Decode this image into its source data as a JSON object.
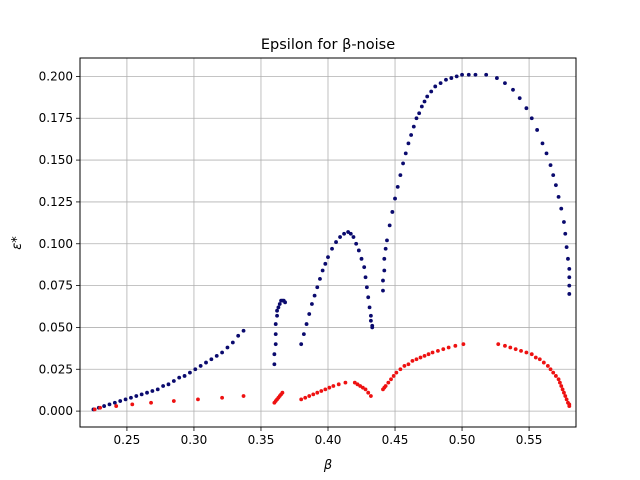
{
  "chart_data": {
    "type": "scatter",
    "title": "Epsilon for β-noise",
    "xlabel": "β",
    "ylabel": "ε*",
    "xlim": [
      0.215,
      0.585
    ],
    "ylim": [
      -0.0095,
      0.211
    ],
    "xticks": [
      0.25,
      0.3,
      0.35,
      0.4,
      0.45,
      0.5,
      0.55
    ],
    "xtick_labels": [
      "0.25",
      "0.30",
      "0.35",
      "0.40",
      "0.45",
      "0.50",
      "0.55"
    ],
    "yticks": [
      0.0,
      0.025,
      0.05,
      0.075,
      0.1,
      0.125,
      0.15,
      0.175,
      0.2
    ],
    "ytick_labels": [
      "0.000",
      "0.025",
      "0.050",
      "0.075",
      "0.100",
      "0.125",
      "0.150",
      "0.175",
      "0.200"
    ],
    "grid": true,
    "colors": {
      "series_1": "#0a0a6e",
      "series_2": "#ee1111",
      "grid": "#b0b0b0"
    },
    "series": [
      {
        "x": [
          0.225,
          0.229,
          0.233,
          0.237,
          0.241,
          0.245,
          0.249,
          0.253,
          0.257,
          0.261,
          0.265,
          0.269,
          0.273,
          0.277,
          0.281,
          0.285,
          0.289,
          0.293,
          0.297,
          0.301,
          0.305,
          0.309,
          0.313,
          0.317,
          0.321,
          0.325,
          0.329,
          0.333,
          0.337,
          0.36,
          0.36,
          0.361,
          0.361,
          0.361,
          0.362,
          0.362,
          0.363,
          0.364,
          0.365,
          0.366,
          0.367,
          0.368,
          0.38,
          0.382,
          0.384,
          0.386,
          0.388,
          0.39,
          0.392,
          0.394,
          0.396,
          0.398,
          0.4,
          0.403,
          0.406,
          0.409,
          0.412,
          0.415,
          0.417,
          0.419,
          0.421,
          0.423,
          0.425,
          0.427,
          0.428,
          0.429,
          0.43,
          0.431,
          0.432,
          0.432,
          0.433,
          0.433,
          0.441,
          0.441,
          0.442,
          0.442,
          0.443,
          0.444,
          0.446,
          0.448,
          0.45,
          0.452,
          0.454,
          0.456,
          0.458,
          0.46,
          0.462,
          0.464,
          0.466,
          0.468,
          0.47,
          0.472,
          0.474,
          0.477,
          0.48,
          0.484,
          0.488,
          0.492,
          0.496,
          0.5,
          0.505,
          0.51,
          0.518,
          0.526,
          0.532,
          0.538,
          0.543,
          0.548,
          0.552,
          0.556,
          0.56,
          0.563,
          0.566,
          0.568,
          0.57,
          0.572,
          0.574,
          0.576,
          0.577,
          0.578,
          0.579,
          0.58,
          0.58,
          0.58,
          0.58
        ],
        "y": [
          0.001,
          0.002,
          0.003,
          0.004,
          0.005,
          0.006,
          0.007,
          0.008,
          0.009,
          0.01,
          0.011,
          0.012,
          0.013,
          0.015,
          0.016,
          0.018,
          0.02,
          0.021,
          0.023,
          0.025,
          0.027,
          0.029,
          0.031,
          0.033,
          0.035,
          0.038,
          0.041,
          0.045,
          0.048,
          0.028,
          0.034,
          0.04,
          0.046,
          0.052,
          0.057,
          0.06,
          0.062,
          0.064,
          0.066,
          0.066,
          0.066,
          0.065,
          0.04,
          0.046,
          0.052,
          0.058,
          0.064,
          0.069,
          0.074,
          0.079,
          0.084,
          0.088,
          0.092,
          0.097,
          0.101,
          0.104,
          0.106,
          0.107,
          0.106,
          0.104,
          0.1,
          0.096,
          0.091,
          0.086,
          0.08,
          0.074,
          0.068,
          0.062,
          0.057,
          0.054,
          0.051,
          0.05,
          0.072,
          0.078,
          0.084,
          0.091,
          0.097,
          0.102,
          0.111,
          0.119,
          0.127,
          0.134,
          0.141,
          0.148,
          0.154,
          0.16,
          0.165,
          0.17,
          0.175,
          0.178,
          0.182,
          0.185,
          0.188,
          0.191,
          0.194,
          0.196,
          0.198,
          0.199,
          0.2,
          0.201,
          0.201,
          0.201,
          0.201,
          0.199,
          0.196,
          0.192,
          0.187,
          0.181,
          0.175,
          0.168,
          0.16,
          0.154,
          0.147,
          0.141,
          0.135,
          0.128,
          0.121,
          0.113,
          0.106,
          0.098,
          0.091,
          0.085,
          0.08,
          0.075,
          0.07
        ]
      },
      {
        "x": [
          0.226,
          0.23,
          0.242,
          0.254,
          0.268,
          0.285,
          0.303,
          0.321,
          0.337,
          0.36,
          0.361,
          0.362,
          0.363,
          0.364,
          0.365,
          0.366,
          0.38,
          0.383,
          0.386,
          0.389,
          0.392,
          0.395,
          0.398,
          0.401,
          0.404,
          0.408,
          0.413,
          0.42,
          0.422,
          0.424,
          0.426,
          0.428,
          0.43,
          0.432,
          0.441,
          0.442,
          0.443,
          0.445,
          0.447,
          0.449,
          0.451,
          0.454,
          0.457,
          0.46,
          0.463,
          0.466,
          0.469,
          0.472,
          0.475,
          0.478,
          0.482,
          0.486,
          0.49,
          0.495,
          0.501,
          0.527,
          0.532,
          0.536,
          0.54,
          0.544,
          0.548,
          0.552,
          0.555,
          0.558,
          0.561,
          0.564,
          0.566,
          0.568,
          0.57,
          0.572,
          0.573,
          0.574,
          0.575,
          0.576,
          0.577,
          0.578,
          0.579,
          0.58,
          0.58
        ],
        "y": [
          0.001,
          0.002,
          0.003,
          0.004,
          0.005,
          0.006,
          0.007,
          0.008,
          0.009,
          0.005,
          0.006,
          0.007,
          0.008,
          0.009,
          0.01,
          0.011,
          0.007,
          0.008,
          0.009,
          0.01,
          0.011,
          0.012,
          0.013,
          0.014,
          0.015,
          0.016,
          0.017,
          0.017,
          0.016,
          0.015,
          0.014,
          0.013,
          0.011,
          0.009,
          0.013,
          0.014,
          0.015,
          0.017,
          0.019,
          0.021,
          0.023,
          0.025,
          0.027,
          0.028,
          0.03,
          0.031,
          0.032,
          0.033,
          0.034,
          0.035,
          0.036,
          0.037,
          0.038,
          0.039,
          0.04,
          0.04,
          0.039,
          0.038,
          0.037,
          0.036,
          0.035,
          0.034,
          0.032,
          0.031,
          0.029,
          0.027,
          0.025,
          0.023,
          0.021,
          0.019,
          0.017,
          0.015,
          0.013,
          0.011,
          0.009,
          0.007,
          0.005,
          0.004,
          0.003
        ]
      }
    ]
  }
}
